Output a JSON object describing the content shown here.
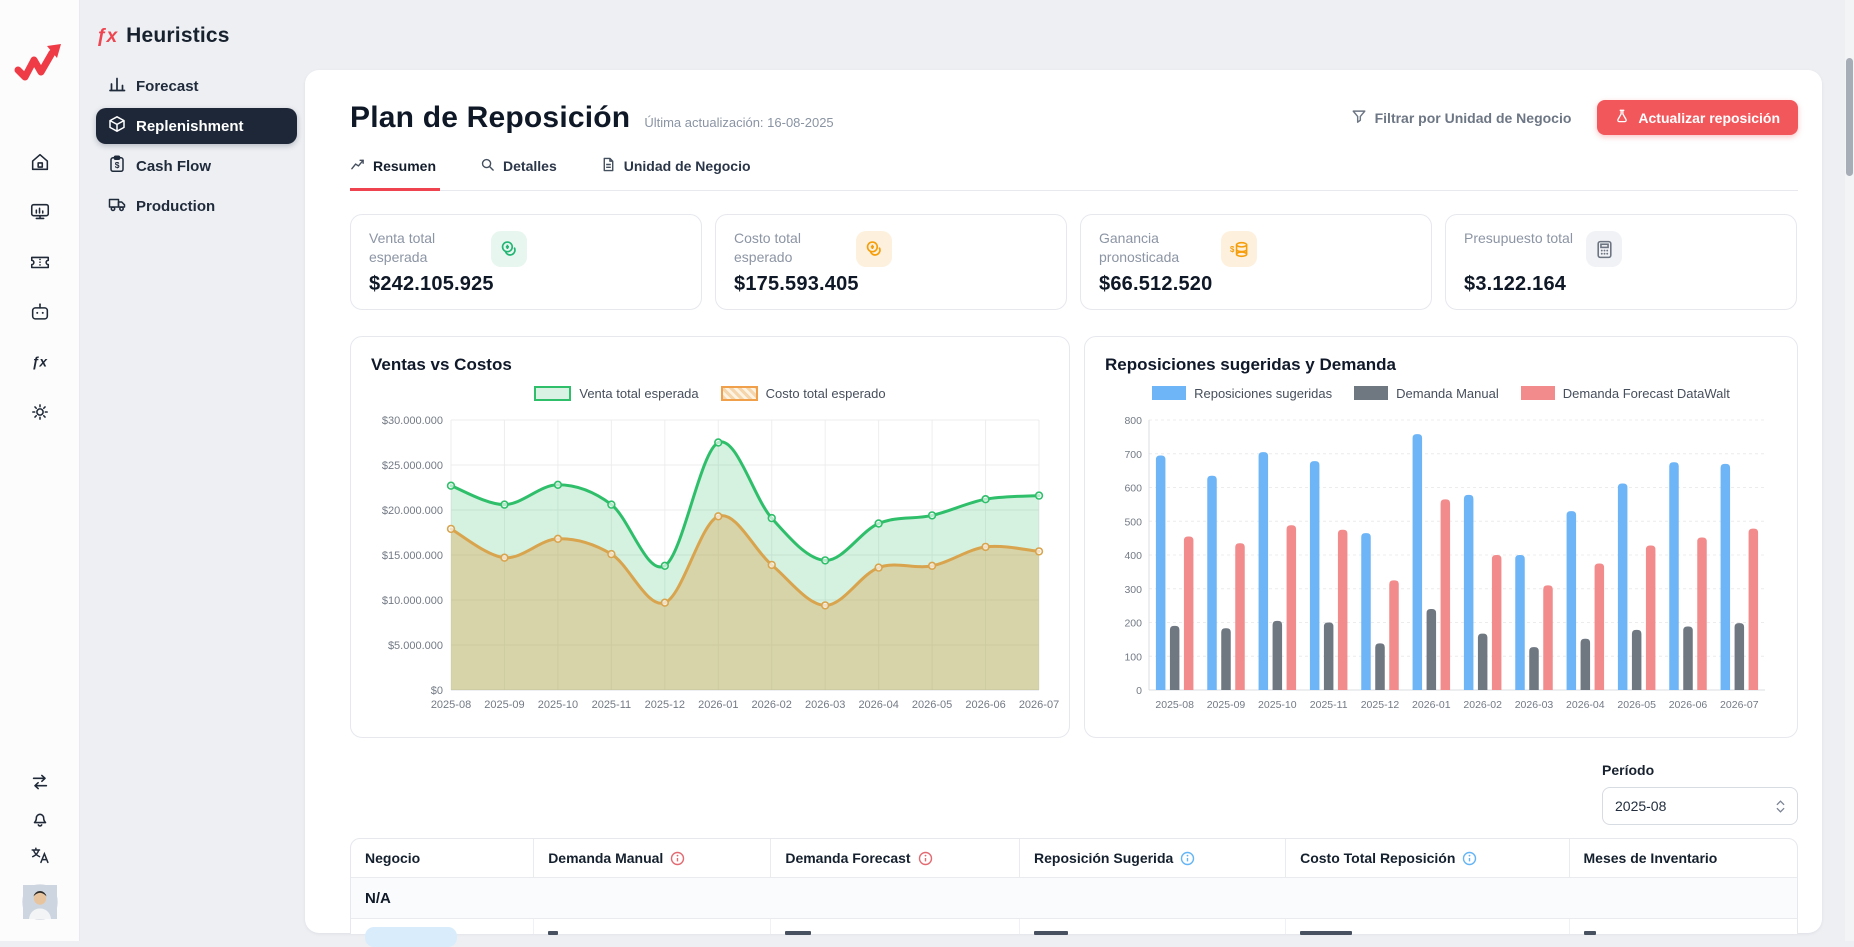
{
  "brand": {
    "icon_text": "ƒx",
    "name": "Heuristics"
  },
  "sidebar": {
    "items": [
      {
        "label": "Forecast",
        "active": false
      },
      {
        "label": "Replenishment",
        "active": true
      },
      {
        "label": "Cash Flow",
        "active": false
      },
      {
        "label": "Production",
        "active": false
      }
    ]
  },
  "header": {
    "title": "Plan de Reposición",
    "last_update": "Última actualización: 16-08-2025",
    "filter_label": "Filtrar por Unidad de Negocio",
    "update_button": "Actualizar reposición"
  },
  "tabs": [
    {
      "label": "Resumen",
      "active": true
    },
    {
      "label": "Detalles",
      "active": false
    },
    {
      "label": "Unidad de Negocio",
      "active": false
    }
  ],
  "kpis": [
    {
      "label": "Venta total esperada",
      "value": "$242.105.925"
    },
    {
      "label": "Costo total esperado",
      "value": "$175.593.405"
    },
    {
      "label": "Ganancia pronosticada",
      "value": "$66.512.520"
    },
    {
      "label": "Presupuesto total",
      "value": "$3.122.164"
    }
  ],
  "chart_data": [
    {
      "type": "line",
      "title": "Ventas vs Costos",
      "categories": [
        "2025-08",
        "2025-09",
        "2025-10",
        "2025-11",
        "2025-12",
        "2026-01",
        "2026-02",
        "2026-03",
        "2026-04",
        "2026-05",
        "2026-06",
        "2026-07"
      ],
      "series": [
        {
          "name": "Venta total esperada",
          "color": "#2fbf6b",
          "fill": "rgba(47,191,107,0.20)",
          "values": [
            22700000,
            20600000,
            22800000,
            20600000,
            13800000,
            27500000,
            19100000,
            14400000,
            18500000,
            19400000,
            21200000,
            21600000
          ]
        },
        {
          "name": "Costo total esperado",
          "color": "#d9a44e",
          "fill": "rgba(217,164,78,0.38)",
          "values": [
            17900000,
            14700000,
            16800000,
            15100000,
            9700000,
            19300000,
            13900000,
            9400000,
            13600000,
            13800000,
            15900000,
            15400000
          ]
        }
      ],
      "ylim": [
        0,
        30000000
      ],
      "y_step": 5000000,
      "y_prefix": "$",
      "grid": true,
      "legend_position": "top"
    },
    {
      "type": "bar",
      "title": "Reposiciones sugeridas y Demanda",
      "categories": [
        "2025-08",
        "2025-09",
        "2025-10",
        "2025-11",
        "2025-12",
        "2026-01",
        "2026-02",
        "2026-03",
        "2026-04",
        "2026-05",
        "2026-06",
        "2026-07"
      ],
      "series": [
        {
          "name": "Reposiciones sugeridas",
          "color": "#6db5f7",
          "values": [
            695,
            635,
            705,
            678,
            465,
            758,
            578,
            400,
            530,
            612,
            675,
            670
          ]
        },
        {
          "name": "Demanda Manual",
          "color": "#6f7781",
          "values": [
            190,
            183,
            205,
            200,
            138,
            240,
            167,
            127,
            152,
            178,
            188,
            198
          ]
        },
        {
          "name": "Demanda Forecast DataWalt",
          "color": "#f28b8b",
          "values": [
            455,
            435,
            488,
            475,
            325,
            565,
            400,
            310,
            375,
            428,
            452,
            478
          ]
        }
      ],
      "ylim": [
        0,
        800
      ],
      "y_step": 100,
      "grid": true,
      "legend_position": "top"
    }
  ],
  "period": {
    "label": "Período",
    "value": "2025-08"
  },
  "table": {
    "columns": [
      {
        "label": "Negocio",
        "info": null
      },
      {
        "label": "Demanda Manual",
        "info": "red"
      },
      {
        "label": "Demanda Forecast",
        "info": "red"
      },
      {
        "label": "Reposición Sugerida",
        "info": "blue"
      },
      {
        "label": "Costo Total Reposición",
        "info": "blue"
      },
      {
        "label": "Meses de Inventario",
        "info": null
      }
    ],
    "group_row_label": "N/A"
  },
  "colors": {
    "accent_red": "#ef4450",
    "button_red": "#f2575c",
    "active_nav_bg": "#1d2737",
    "info_red": "#e26b72",
    "info_blue": "#64b5f6",
    "badge_blue": "#d9ecfc"
  }
}
